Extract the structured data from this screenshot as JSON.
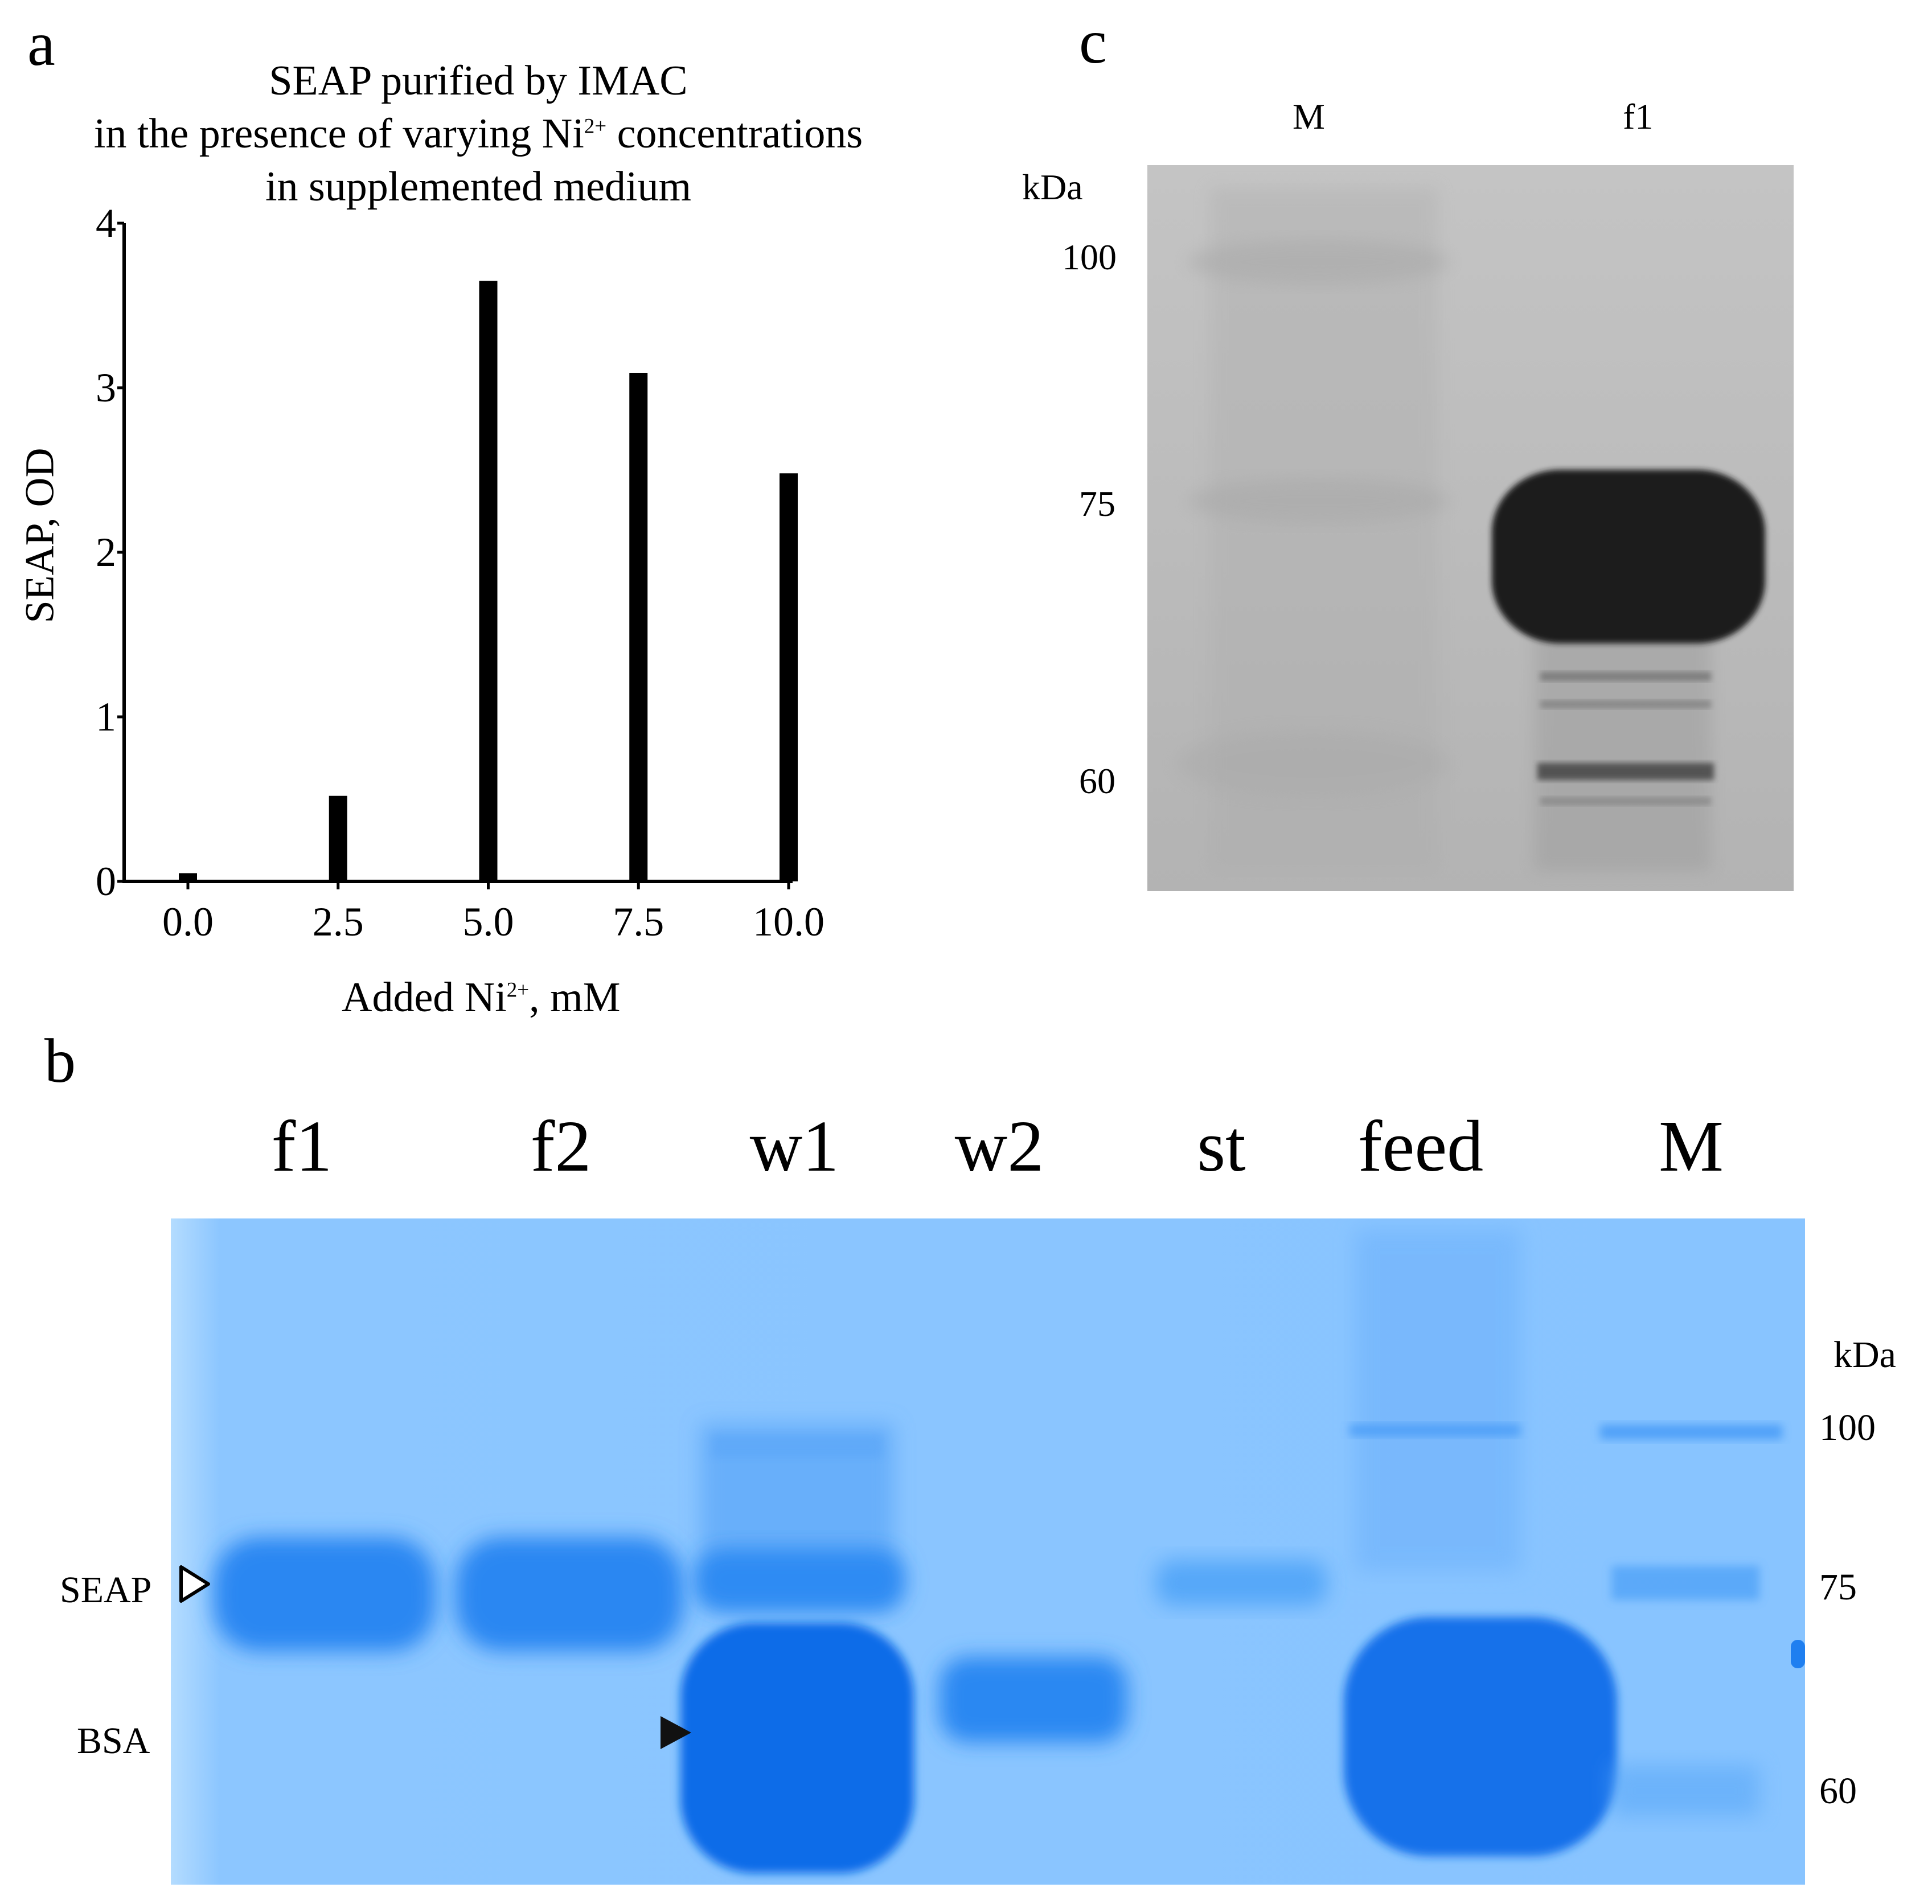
{
  "panels": {
    "a": {
      "letter": "a"
    },
    "b": {
      "letter": "b"
    },
    "c": {
      "letter": "c"
    }
  },
  "chart_title": {
    "line1": "SEAP purified by IMAC",
    "line2_pre": "in the presence of varying Ni",
    "line2_sup": "2+",
    "line2_post": " concentrations",
    "line3": "in supplemented medium"
  },
  "axis": {
    "ylabel": "SEAP, OD",
    "xlabel_pre": "Added Ni",
    "xlabel_sup": "2+",
    "xlabel_post": ", mM",
    "yticks": [
      "0",
      "1",
      "2",
      "3",
      "4"
    ],
    "xticks": [
      "0.0",
      "2.5",
      "5.0",
      "7.5",
      "10.0"
    ]
  },
  "chart_data": {
    "type": "bar",
    "categories": [
      "0.0",
      "2.5",
      "5.0",
      "7.5",
      "10.0"
    ],
    "values": [
      0.05,
      0.52,
      3.65,
      3.09,
      2.48
    ],
    "title": "SEAP purified by IMAC in the presence of varying Ni2+ concentrations in supplemented medium",
    "xlabel": "Added Ni2+, mM",
    "ylabel": "SEAP, OD",
    "ylim": [
      0,
      4
    ],
    "grid": false,
    "bar_color": "#000000"
  },
  "gel_b": {
    "lanes": [
      "f1",
      "f2",
      "w1",
      "w2",
      "st",
      "feed",
      "M"
    ],
    "unit": "kDa",
    "markers": [
      "100",
      "75",
      "60"
    ],
    "seap_label": "SEAP",
    "bsa_label": "BSA",
    "background_color": "#8cc6ff",
    "band_color": "#1a78f0"
  },
  "blot_c": {
    "lanes": [
      "M",
      "f1"
    ],
    "unit": "kDa",
    "markers": [
      "100",
      "75",
      "60"
    ],
    "background_color": "#b9b9b9"
  }
}
